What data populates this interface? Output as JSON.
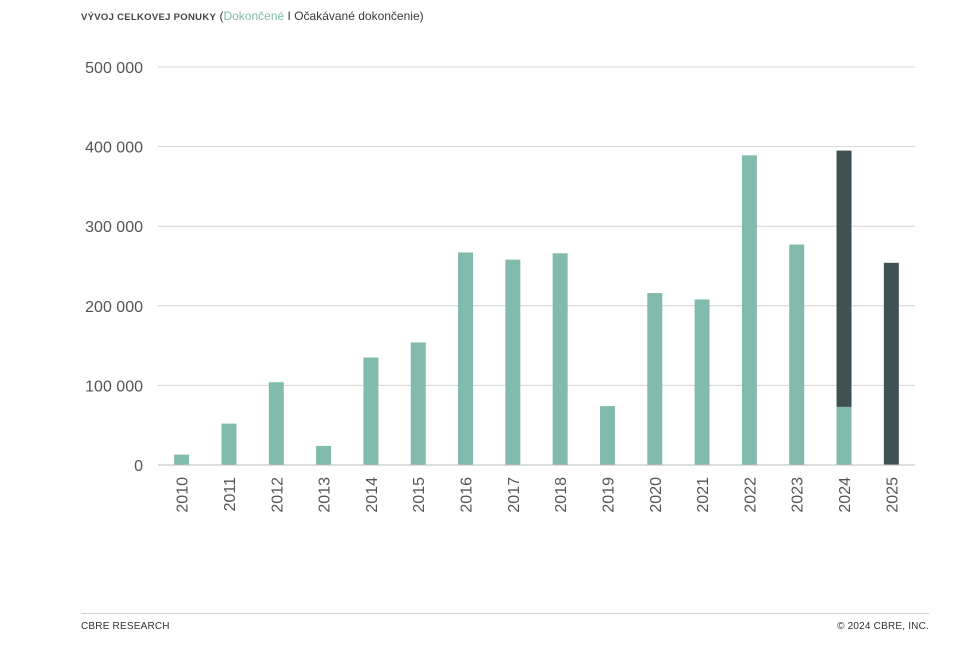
{
  "header": {
    "title_caps": "VÝVOJ CELKOVEJ PONUKY",
    "paren_open": "(",
    "legend_completed": "Dokončené",
    "separator": " I ",
    "legend_expected": "Očakávané dokončenie",
    "paren_close": ")"
  },
  "footer": {
    "left": "CBRE RESEARCH",
    "right": "© 2024 CBRE, INC."
  },
  "colors": {
    "completed": "#80BBAD",
    "expected": "#3F5153",
    "grid": "#d4d4d4",
    "axis_text": "#555555"
  },
  "chart_data": {
    "type": "bar",
    "stacked": true,
    "categories": [
      "2010",
      "2011",
      "2012",
      "2013",
      "2014",
      "2015",
      "2016",
      "2017",
      "2018",
      "2019",
      "2020",
      "2021",
      "2022",
      "2023",
      "2024",
      "2025"
    ],
    "series": [
      {
        "name": "Dokončené",
        "values": [
          13000,
          52000,
          104000,
          24000,
          135000,
          154000,
          267000,
          258000,
          266000,
          74000,
          216000,
          208000,
          389000,
          277000,
          73000,
          0
        ]
      },
      {
        "name": "Očakávané dokončenie",
        "values": [
          0,
          0,
          0,
          0,
          0,
          0,
          0,
          0,
          0,
          0,
          0,
          0,
          0,
          0,
          322000,
          254000
        ]
      }
    ],
    "yticks": [
      0,
      100000,
      200000,
      300000,
      400000,
      500000
    ],
    "ytick_labels": [
      "0",
      "100 000",
      "200 000",
      "300 000",
      "400 000",
      "500 000"
    ],
    "ylim": [
      0,
      500000
    ],
    "grid": true,
    "legend": "title"
  }
}
